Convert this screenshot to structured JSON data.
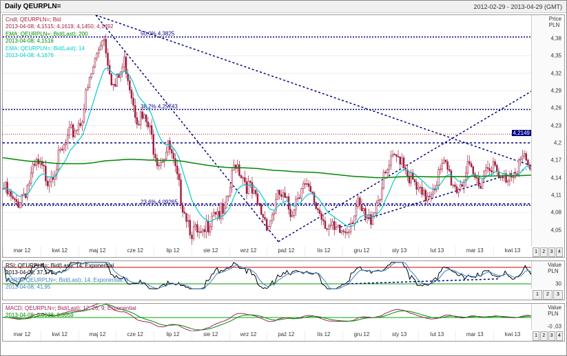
{
  "header": {
    "title": "Daily QEURPLN=",
    "date_range": "2012-02-29 - 2013-04-29 (GMT)"
  },
  "main": {
    "y_title1": "Price",
    "y_title2": "PLN",
    "ylim": [
      4.02,
      4.42
    ],
    "yticks": [
      4.05,
      4.08,
      4.11,
      4.14,
      4.17,
      4.2,
      4.23,
      4.26,
      4.29,
      4.32,
      4.35,
      4.38
    ],
    "ytick_labels": [
      "4,05",
      "4,08",
      "4,11",
      "4,14",
      "4,17",
      "4,2",
      "4,23",
      "4,26",
      "4,29",
      "4,32",
      "4,35",
      "4,38"
    ],
    "price_tag": "4,2149",
    "legend": [
      {
        "text": "Cndl; QEURPLN=; Bid",
        "color": "#a02040"
      },
      {
        "text": "2013-04-08; 4,1515; 4,1619; 4,1450; 4,1492",
        "color": "#a02040"
      },
      {
        "text": "EMA; QEURPLN=; Bid(Last);  200",
        "color": "#008800"
      },
      {
        "text": "2013-04-08; 4,1516",
        "color": "#008800"
      },
      {
        "text": "EMA; QEURPLN=; Bid(Last);  14",
        "color": "#00cccc"
      },
      {
        "text": "2013-04-08; 4,1676",
        "color": "#00cccc"
      }
    ],
    "fib_levels": [
      {
        "label": "50,0%  4,3825",
        "y": 4.3825,
        "color": "#000080"
      },
      {
        "label": "38,2%  4,25743",
        "y": 4.2574,
        "color": "#000080"
      },
      {
        "label": "23,6%  4,09265",
        "y": 4.0927,
        "color": "#000080"
      }
    ],
    "red_line": {
      "y": 4.2149,
      "color": "#cc0000"
    },
    "colors": {
      "candle": "#a02040",
      "ema14": "#00cccc",
      "ema200": "#008800",
      "trend": "#000080",
      "bg": "#ffffff",
      "grid": "#eeeeee"
    }
  },
  "rsi": {
    "y_title1": "Value",
    "y_title2": "PLN",
    "legend": [
      {
        "text": "RSI; QEURPLN=; Bid(Last);  14; Exponential",
        "color": "#000000"
      },
      {
        "text": "2013-04-08; 37,175",
        "color": "#000000"
      },
      {
        "text": "MARSI; QEURPLN=; Bid(Last);  14; Exponential; 9",
        "color": "#4080c0"
      },
      {
        "text": "2013-04-08; 41,95",
        "color": "#4080c0"
      }
    ],
    "levels": [
      {
        "y": 70,
        "color": "#cc0000"
      },
      {
        "y": 30,
        "color": "#009900"
      }
    ],
    "ylim": [
      15,
      85
    ],
    "ytick": 30
  },
  "macd": {
    "y_title1": "Value",
    "y_title2": "PLN",
    "legend": [
      {
        "text": "MACD; QEURPLN=; Bid(Last);  12; 26; 9; Exponential",
        "color": "#a02060"
      },
      {
        "text": "2013-04-08; 0,0038; 0,0059",
        "color": "#008800"
      }
    ],
    "ylim": [
      -0.048,
      0.048
    ],
    "ytick": -0.03,
    "zero_color": "#00aa00"
  },
  "xaxis": {
    "labels": [
      "mar 12",
      "kwi 12",
      "maj 12",
      "cze 12",
      "lip 12",
      "sie 12",
      "wrz 12",
      "paź 12",
      "lis 12",
      "gru 12",
      "sty 13",
      "lut 13",
      "mar 13",
      "kwi 13"
    ],
    "ticks": [
      "05",
      "12",
      "19",
      "26",
      "02",
      "10",
      "16",
      "23",
      "30",
      "07",
      "14",
      "21",
      "28",
      "04",
      "11",
      "18",
      "25",
      "02",
      "09",
      "16",
      "23",
      "30",
      "06",
      "13",
      "20",
      "27",
      "03",
      "10",
      "17",
      "24",
      "01",
      "08",
      "15",
      "22",
      "29",
      "05",
      "12",
      "19",
      "26",
      "03",
      "10",
      "17",
      "24",
      "31",
      "07",
      "14",
      "21",
      "28",
      "04",
      "11",
      "18",
      "25",
      "04",
      "11",
      "18",
      "25",
      "01",
      "08",
      "15",
      "22",
      "29"
    ]
  },
  "scale_buttons": [
    "1",
    "2",
    "3",
    "4"
  ]
}
